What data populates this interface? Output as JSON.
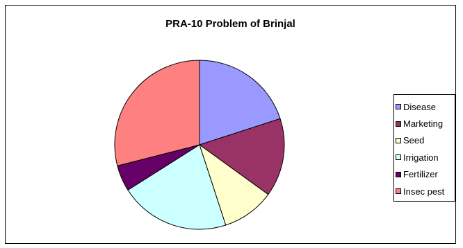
{
  "chart_data": {
    "type": "pie",
    "title": "PRA-10 Problem of Brinjal",
    "legend_position": "right",
    "series": [
      {
        "name": "Disease",
        "value": 20,
        "color": "#9999ff"
      },
      {
        "name": "Marketing",
        "value": 15,
        "color": "#993366"
      },
      {
        "name": "Seed",
        "value": 10,
        "color": "#ffffcc"
      },
      {
        "name": "Irrigation",
        "value": 21,
        "color": "#ccffff"
      },
      {
        "name": "Fertilizer",
        "value": 5,
        "color": "#660066"
      },
      {
        "name": "Insec pest",
        "value": 29,
        "color": "#ff8080"
      }
    ]
  }
}
